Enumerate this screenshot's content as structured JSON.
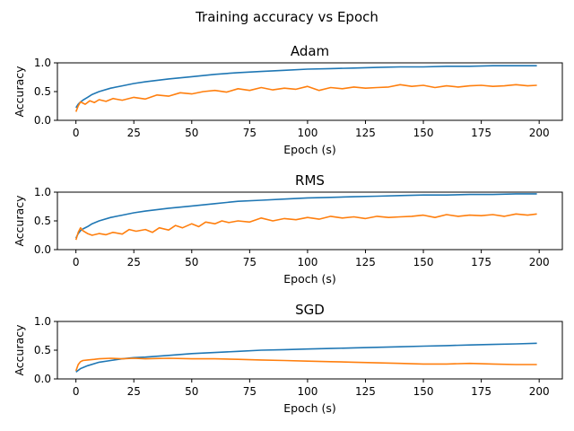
{
  "figure": {
    "suptitle": "Training accuracy vs Epoch"
  },
  "colors": {
    "series_1": "#1f77b4",
    "series_2": "#ff7f0e"
  },
  "chart_data": [
    {
      "type": "line",
      "title": "Adam",
      "xlabel": "Epoch (s)",
      "ylabel": "Accuracy",
      "xlim": [
        -8,
        210
      ],
      "ylim": [
        0,
        1
      ],
      "xticks": [
        0,
        25,
        50,
        75,
        100,
        125,
        150,
        175,
        200
      ],
      "yticks": [
        0.0,
        0.5,
        1.0
      ],
      "ytick_labels": [
        "0.0",
        "0.5",
        "1.0"
      ],
      "grid": false,
      "series": [
        {
          "x": [
            0,
            1,
            2,
            3,
            5,
            7,
            10,
            15,
            20,
            25,
            30,
            40,
            50,
            60,
            70,
            80,
            90,
            100,
            110,
            120,
            130,
            140,
            150,
            160,
            170,
            180,
            190,
            199
          ],
          "values": [
            0.22,
            0.28,
            0.32,
            0.35,
            0.4,
            0.45,
            0.5,
            0.56,
            0.6,
            0.64,
            0.67,
            0.72,
            0.76,
            0.8,
            0.83,
            0.85,
            0.87,
            0.89,
            0.9,
            0.91,
            0.92,
            0.93,
            0.93,
            0.94,
            0.94,
            0.95,
            0.95,
            0.95
          ]
        },
        {
          "x": [
            0,
            1,
            2,
            4,
            6,
            8,
            10,
            13,
            16,
            20,
            25,
            30,
            35,
            40,
            45,
            50,
            55,
            60,
            65,
            70,
            75,
            80,
            85,
            90,
            95,
            100,
            105,
            110,
            115,
            120,
            125,
            130,
            135,
            140,
            145,
            150,
            155,
            160,
            165,
            170,
            175,
            180,
            185,
            190,
            195,
            199
          ],
          "values": [
            0.15,
            0.25,
            0.32,
            0.28,
            0.34,
            0.31,
            0.36,
            0.33,
            0.38,
            0.35,
            0.4,
            0.37,
            0.44,
            0.42,
            0.48,
            0.46,
            0.5,
            0.52,
            0.49,
            0.55,
            0.52,
            0.57,
            0.53,
            0.56,
            0.54,
            0.59,
            0.52,
            0.57,
            0.55,
            0.58,
            0.56,
            0.57,
            0.58,
            0.62,
            0.59,
            0.61,
            0.57,
            0.6,
            0.58,
            0.6,
            0.61,
            0.59,
            0.6,
            0.62,
            0.6,
            0.61
          ]
        }
      ]
    },
    {
      "type": "line",
      "title": "RMS",
      "xlabel": "Epoch (s)",
      "ylabel": "Accuracy",
      "xlim": [
        -8,
        210
      ],
      "ylim": [
        0,
        1
      ],
      "xticks": [
        0,
        25,
        50,
        75,
        100,
        125,
        150,
        175,
        200
      ],
      "yticks": [
        0.0,
        0.5,
        1.0
      ],
      "ytick_labels": [
        "0.0",
        "0.5",
        "1.0"
      ],
      "grid": false,
      "series": [
        {
          "x": [
            0,
            1,
            2,
            3,
            5,
            7,
            10,
            15,
            20,
            25,
            30,
            40,
            50,
            60,
            70,
            80,
            90,
            100,
            110,
            120,
            130,
            140,
            150,
            160,
            170,
            180,
            190,
            199
          ],
          "values": [
            0.2,
            0.28,
            0.33,
            0.36,
            0.4,
            0.45,
            0.5,
            0.56,
            0.6,
            0.64,
            0.67,
            0.72,
            0.76,
            0.8,
            0.84,
            0.86,
            0.88,
            0.9,
            0.91,
            0.92,
            0.93,
            0.94,
            0.95,
            0.95,
            0.96,
            0.96,
            0.97,
            0.97
          ]
        },
        {
          "x": [
            0,
            1,
            2,
            3,
            5,
            7,
            10,
            13,
            16,
            20,
            23,
            26,
            30,
            33,
            36,
            40,
            43,
            46,
            50,
            53,
            56,
            60,
            63,
            66,
            70,
            75,
            80,
            85,
            90,
            95,
            100,
            105,
            110,
            115,
            120,
            125,
            130,
            135,
            140,
            145,
            150,
            155,
            160,
            165,
            170,
            175,
            180,
            185,
            190,
            195,
            199
          ],
          "values": [
            0.17,
            0.3,
            0.38,
            0.33,
            0.28,
            0.25,
            0.28,
            0.26,
            0.3,
            0.27,
            0.35,
            0.32,
            0.35,
            0.3,
            0.38,
            0.34,
            0.42,
            0.38,
            0.45,
            0.4,
            0.48,
            0.45,
            0.5,
            0.47,
            0.5,
            0.48,
            0.55,
            0.5,
            0.54,
            0.52,
            0.56,
            0.53,
            0.58,
            0.55,
            0.57,
            0.54,
            0.58,
            0.56,
            0.57,
            0.58,
            0.6,
            0.56,
            0.61,
            0.58,
            0.6,
            0.59,
            0.61,
            0.58,
            0.62,
            0.6,
            0.62
          ]
        }
      ]
    },
    {
      "type": "line",
      "title": "SGD",
      "xlabel": "Epoch (s)",
      "ylabel": "Accuracy",
      "xlim": [
        -8,
        210
      ],
      "ylim": [
        0,
        1
      ],
      "xticks": [
        0,
        25,
        50,
        75,
        100,
        125,
        150,
        175,
        200
      ],
      "yticks": [
        0.0,
        0.5,
        1.0
      ],
      "ytick_labels": [
        "0.0",
        "0.5",
        "1.0"
      ],
      "grid": false,
      "series": [
        {
          "x": [
            0,
            2,
            5,
            10,
            15,
            20,
            25,
            30,
            40,
            50,
            60,
            70,
            80,
            90,
            100,
            110,
            120,
            130,
            140,
            150,
            160,
            170,
            180,
            190,
            199
          ],
          "values": [
            0.12,
            0.18,
            0.23,
            0.29,
            0.32,
            0.35,
            0.37,
            0.38,
            0.41,
            0.44,
            0.46,
            0.48,
            0.5,
            0.51,
            0.52,
            0.53,
            0.54,
            0.55,
            0.56,
            0.57,
            0.58,
            0.59,
            0.6,
            0.61,
            0.62
          ]
        },
        {
          "x": [
            0,
            1,
            2,
            3,
            5,
            8,
            10,
            15,
            20,
            25,
            30,
            40,
            50,
            60,
            70,
            80,
            90,
            100,
            110,
            120,
            130,
            140,
            150,
            160,
            170,
            180,
            190,
            199
          ],
          "values": [
            0.14,
            0.25,
            0.3,
            0.32,
            0.33,
            0.34,
            0.35,
            0.36,
            0.35,
            0.36,
            0.35,
            0.36,
            0.35,
            0.35,
            0.34,
            0.33,
            0.32,
            0.31,
            0.3,
            0.29,
            0.28,
            0.27,
            0.26,
            0.26,
            0.27,
            0.26,
            0.25,
            0.25
          ]
        }
      ]
    }
  ]
}
